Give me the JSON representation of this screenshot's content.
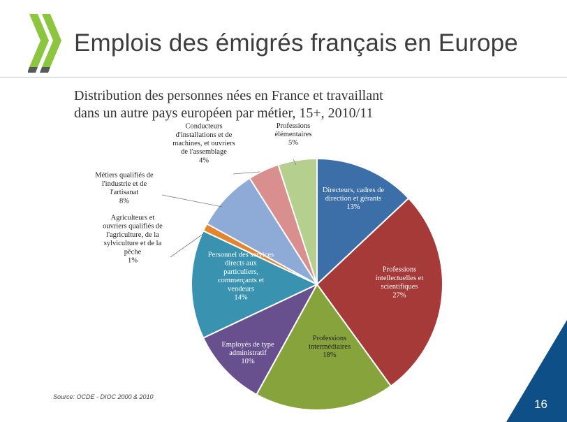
{
  "slide": {
    "title": "Emplois des émigrés français en Europe",
    "source": "Source:  OCDE - DIOC 2000 & 2010",
    "page_number": "16",
    "logo_icon": "oecd-chevrons-logo",
    "colors": {
      "logo_green": "#8cc63f",
      "logo_grey": "#58595b",
      "corner_blue": "#0d4f86"
    }
  },
  "chart_data": {
    "type": "pie",
    "title": "Distribution des personnes nées en France et travaillant dans un autre pays européen par métier, 15+, 2010/11",
    "title_lines": [
      "Distribution des personnes nées en France et travaillant",
      "dans un autre pays européen par métier, 15+, 2010/11"
    ],
    "slices": [
      {
        "label_lines": [
          "Directeurs, cadres de",
          "direction et gérants"
        ],
        "value": 13,
        "value_label": "13%",
        "color": "#3c6ea8"
      },
      {
        "label_lines": [
          "Professions",
          "intellectuelles et",
          "scientifiques"
        ],
        "value": 27,
        "value_label": "27%",
        "color": "#a63a38"
      },
      {
        "label_lines": [
          "Professions",
          "intermédiaires"
        ],
        "value": 18,
        "value_label": "18%",
        "color": "#86a43b"
      },
      {
        "label_lines": [
          "Employés de type",
          "administratif"
        ],
        "value": 10,
        "value_label": "10%",
        "color": "#68508f"
      },
      {
        "label_lines": [
          "Personnel des services",
          "directs aux",
          "particuliers,",
          "commerçants et",
          "vendeurs"
        ],
        "value": 14,
        "value_label": "14%",
        "color": "#3993b0"
      },
      {
        "label_lines": [
          "Agriculteurs et",
          "ouvriers qualifiés de",
          "l'agriculture, de la",
          "sylviculture et de la",
          "pêche"
        ],
        "value": 1,
        "value_label": "1%",
        "color": "#e3842f"
      },
      {
        "label_lines": [
          "Métiers qualifiés de",
          "l'industrie et de",
          "l'artisanat"
        ],
        "value": 8,
        "value_label": "8%",
        "color": "#8eaad6"
      },
      {
        "label_lines": [
          "Conducteurs",
          "d'installations et de",
          "machines, et ouvriers",
          "de l'assemblage"
        ],
        "value": 4,
        "value_label": "4%",
        "color": "#d88f8e"
      },
      {
        "label_lines": [
          "Professions",
          "élémentaires"
        ],
        "value": 5,
        "value_label": "5%",
        "color": "#b5cf8e"
      }
    ]
  }
}
